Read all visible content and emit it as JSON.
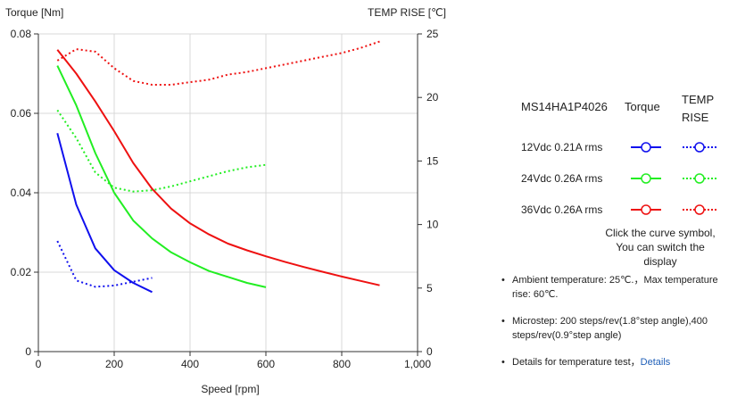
{
  "chart_data": {
    "type": "line",
    "title": "",
    "xlabel": "Speed [rpm]",
    "ylabel_left": "Torque  [Nm]",
    "ylabel_right": "TEMP RISE [℃]",
    "xlim": [
      0,
      1000
    ],
    "ylim_left": [
      0,
      0.08
    ],
    "ylim_right": [
      0,
      25
    ],
    "x_ticks": [
      "0",
      "200",
      "400",
      "600",
      "800",
      "1,000"
    ],
    "y_left_ticks": [
      "0",
      "0.02",
      "0.04",
      "0.06",
      "0.08"
    ],
    "y_right_ticks": [
      "0",
      "5",
      "10",
      "15",
      "20",
      "25"
    ],
    "grid": true,
    "series": [
      {
        "name": "12Vdc  0.21A rms",
        "kind": "torque",
        "color": "#1010ee",
        "x": [
          50,
          100,
          150,
          200,
          250,
          300
        ],
        "y": [
          0.055,
          0.037,
          0.026,
          0.0205,
          0.0173,
          0.015
        ]
      },
      {
        "name": "12Vdc  0.21A rms",
        "kind": "temp",
        "color": "#1010ee",
        "x": [
          50,
          100,
          150,
          200,
          250,
          300
        ],
        "y": [
          8.7,
          5.6,
          5.1,
          5.2,
          5.5,
          5.8
        ]
      },
      {
        "name": "24Vdc  0.26A rms",
        "kind": "torque",
        "color": "#22ee22",
        "x": [
          50,
          100,
          150,
          200,
          250,
          300,
          350,
          400,
          450,
          500,
          550,
          600
        ],
        "y": [
          0.072,
          0.062,
          0.05,
          0.04,
          0.033,
          0.0285,
          0.025,
          0.0225,
          0.0203,
          0.0188,
          0.0173,
          0.0162
        ]
      },
      {
        "name": "24Vdc  0.26A rms",
        "kind": "temp",
        "color": "#22ee22",
        "x": [
          50,
          100,
          150,
          200,
          250,
          300,
          350,
          400,
          450,
          500,
          550,
          600
        ],
        "y": [
          19.0,
          16.8,
          14.1,
          12.9,
          12.6,
          12.7,
          13.0,
          13.4,
          13.8,
          14.2,
          14.5,
          14.7
        ]
      },
      {
        "name": "36Vdc  0.26A rms",
        "kind": "torque",
        "color": "#ee1111",
        "x": [
          50,
          100,
          150,
          200,
          250,
          300,
          350,
          400,
          450,
          500,
          550,
          600,
          650,
          700,
          750,
          800,
          850,
          900
        ],
        "y": [
          0.076,
          0.07,
          0.063,
          0.0555,
          0.0475,
          0.041,
          0.036,
          0.0323,
          0.0295,
          0.0272,
          0.0255,
          0.024,
          0.0226,
          0.0213,
          0.0201,
          0.0189,
          0.0178,
          0.0167
        ]
      },
      {
        "name": "36Vdc  0.26A rms",
        "kind": "temp",
        "color": "#ee1111",
        "x": [
          50,
          100,
          150,
          200,
          250,
          300,
          350,
          400,
          450,
          500,
          550,
          600,
          650,
          700,
          750,
          800,
          850,
          900
        ],
        "y": [
          22.9,
          23.8,
          23.6,
          22.3,
          21.3,
          21.0,
          21.0,
          21.2,
          21.4,
          21.8,
          22.0,
          22.3,
          22.6,
          22.9,
          23.2,
          23.5,
          23.9,
          24.4
        ]
      }
    ]
  },
  "legend": {
    "model": "MS14HA1P4026",
    "torque_header": "Torque",
    "temp_header_line1": "TEMP",
    "temp_header_line2": "RISE",
    "rows": [
      {
        "label": "12Vdc   0.21A rms",
        "color": "#1010ee"
      },
      {
        "label": "24Vdc   0.26A rms",
        "color": "#22ee22"
      },
      {
        "label": "36Vdc   0.26A rms",
        "color": "#ee1111"
      }
    ],
    "hint_line1": "Click the curve symbol,",
    "hint_line2": "You can switch the display"
  },
  "notes": {
    "ambient": "Ambient temperature: 25℃.，Max temperature rise: 60℃.",
    "microstep": "Microstep: 200 steps/rev(1.8°step angle),400 steps/rev(0.9°step angle)",
    "details_text": "Details for temperature test，",
    "details_link": "Details"
  }
}
